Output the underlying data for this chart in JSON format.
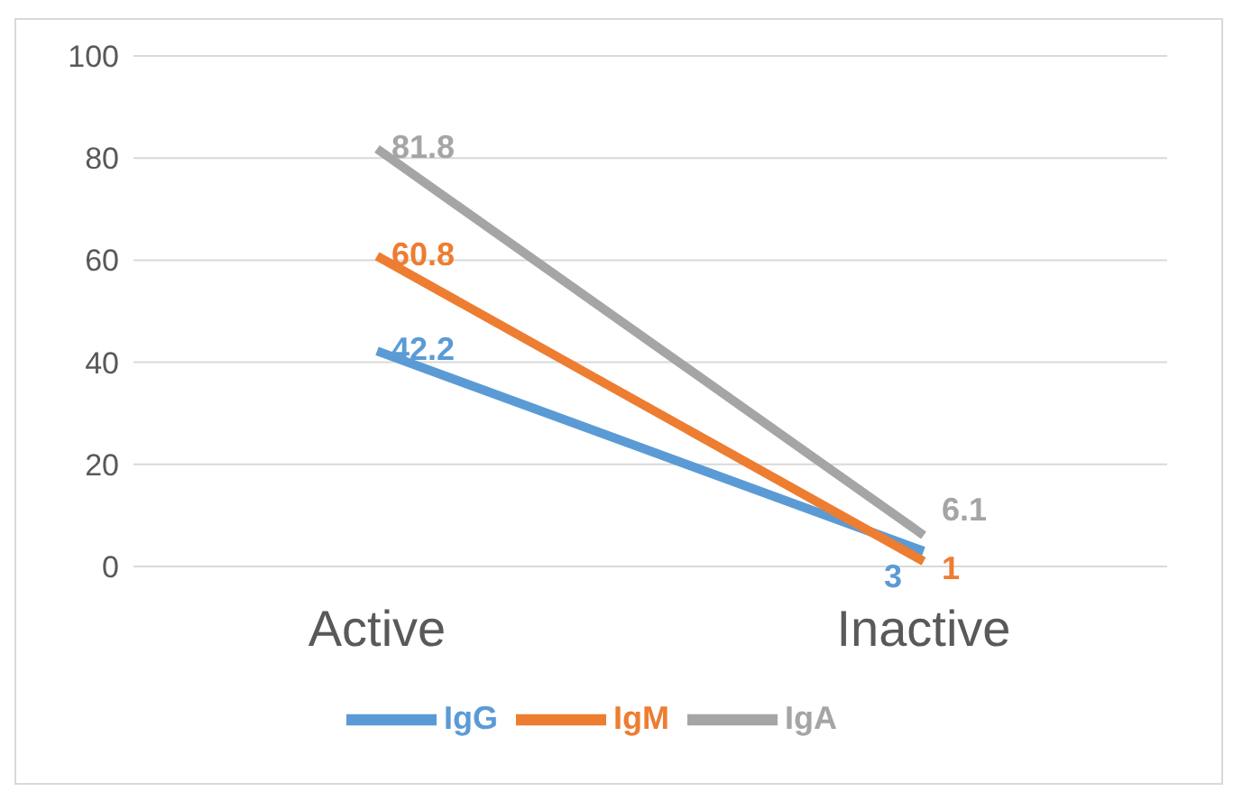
{
  "chart_data": {
    "type": "line",
    "categories": [
      "Active",
      "Inactive"
    ],
    "series": [
      {
        "name": "IgG",
        "color": "#5b9bd5",
        "values": [
          42.2,
          3
        ]
      },
      {
        "name": "IgM",
        "color": "#ed7d31",
        "values": [
          60.8,
          1
        ]
      },
      {
        "name": "IgA",
        "color": "#a5a5a5",
        "values": [
          81.8,
          6.1
        ]
      }
    ],
    "ylim": [
      0,
      100
    ],
    "yticks": [
      0,
      20,
      40,
      60,
      80,
      100
    ],
    "grid": "y",
    "legend": "bottom",
    "marker": "none",
    "line_style": "solid",
    "data_labels": true
  }
}
